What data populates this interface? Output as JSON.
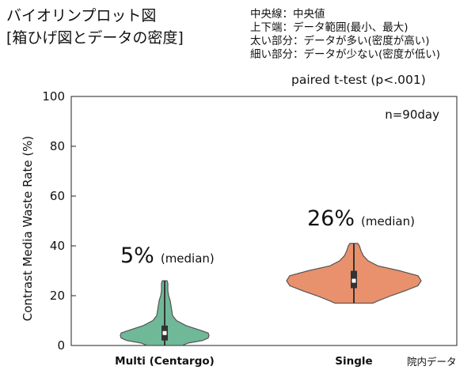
{
  "title": {
    "line1": "バイオリンプロット図",
    "line2": "[箱ひげ図とデータの密度]"
  },
  "legend_notes": [
    "中央線：中央値",
    "上下端：データ範囲(最小、最大)",
    "太い部分：データが多い(密度が高い)",
    "細い部分：データが少ない(密度が低い)"
  ],
  "test_label": "paired t-test (p<.001)",
  "n_label": "n=90day",
  "source_label": "院内データ",
  "colors": {
    "multi": "#6fb898",
    "single": "#e8916c",
    "box": "#333333",
    "median": "#ffffff"
  },
  "chart_data": {
    "type": "violin",
    "ylabel": "Contrast Media Waste Rate (%)",
    "ylim": [
      0,
      100
    ],
    "yticks": [
      0,
      20,
      40,
      60,
      80,
      100
    ],
    "categories": [
      "Multi (Centargo)",
      "Single"
    ],
    "series": [
      {
        "category": "Multi (Centargo)",
        "min": 0,
        "q1": 2,
        "median": 5,
        "q3": 8,
        "max": 26,
        "median_label": "5%",
        "median_label_suffix": "(median)",
        "density": [
          [
            0,
            22
          ],
          [
            1,
            30
          ],
          [
            2,
            48
          ],
          [
            3,
            55
          ],
          [
            4,
            56
          ],
          [
            5,
            55
          ],
          [
            6,
            46
          ],
          [
            8,
            27
          ],
          [
            10,
            15
          ],
          [
            12,
            10
          ],
          [
            14,
            9
          ],
          [
            16,
            8
          ],
          [
            18,
            7
          ],
          [
            20,
            5
          ],
          [
            22,
            4
          ],
          [
            24,
            4
          ],
          [
            25,
            4
          ],
          [
            26,
            3
          ]
        ]
      },
      {
        "category": "Single",
        "min": 17,
        "q1": 23,
        "median": 26,
        "q3": 30,
        "max": 41,
        "median_label": "26%",
        "median_label_suffix": "(median)",
        "density": [
          [
            17,
            24
          ],
          [
            18,
            31
          ],
          [
            20,
            47
          ],
          [
            22,
            65
          ],
          [
            24,
            81
          ],
          [
            26,
            85
          ],
          [
            28,
            81
          ],
          [
            30,
            58
          ],
          [
            32,
            30
          ],
          [
            34,
            18
          ],
          [
            36,
            12
          ],
          [
            38,
            9
          ],
          [
            40,
            7
          ],
          [
            41,
            5
          ]
        ]
      }
    ]
  }
}
